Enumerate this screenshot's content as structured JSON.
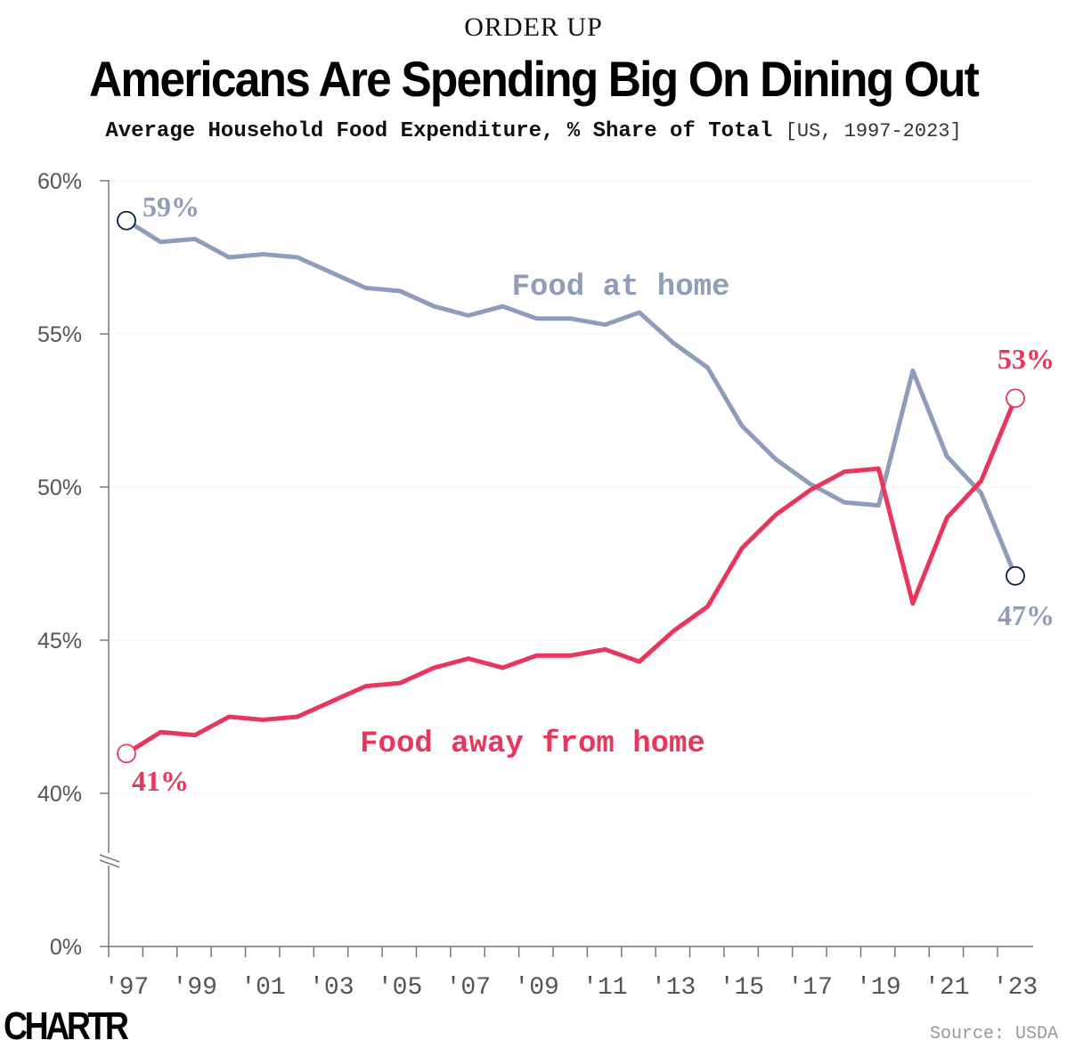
{
  "kicker": "ORDER UP",
  "title": "Americans Are Spending Big On Dining Out",
  "subtitle": "Average Household Food Expenditure, % Share of Total",
  "subtitle_range": "[US, 1997-2023]",
  "logo": "CHARTR",
  "source": "Source: USDA",
  "chart_data": {
    "type": "line",
    "title": "Americans Are Spending Big On Dining Out",
    "subtitle": "Average Household Food Expenditure, % Share of Total [US, 1997-2023]",
    "x": [
      1997,
      1998,
      1999,
      2000,
      2001,
      2002,
      2003,
      2004,
      2005,
      2006,
      2007,
      2008,
      2009,
      2010,
      2011,
      2012,
      2013,
      2014,
      2015,
      2016,
      2017,
      2018,
      2019,
      2020,
      2021,
      2022,
      2023
    ],
    "x_tick_labels": [
      "'97",
      "'99",
      "'01",
      "'03",
      "'05",
      "'07",
      "'09",
      "'11",
      "'13",
      "'15",
      "'17",
      "'19",
      "'21",
      "'23"
    ],
    "y_tick_labels": [
      "0%",
      "40%",
      "45%",
      "50%",
      "55%",
      "60%"
    ],
    "y_ticks": [
      0,
      40,
      45,
      50,
      55,
      60
    ],
    "ylim": [
      0,
      60
    ],
    "y_axis_break": [
      0,
      40
    ],
    "grid": true,
    "series": [
      {
        "name": "Food at home",
        "color": "#8e9dbb",
        "values": [
          58.7,
          58.0,
          58.1,
          57.5,
          57.6,
          57.5,
          57.0,
          56.5,
          56.4,
          55.9,
          55.6,
          55.9,
          55.5,
          55.5,
          55.3,
          55.7,
          54.7,
          53.9,
          52.0,
          50.9,
          50.1,
          49.5,
          49.4,
          53.8,
          51.0,
          49.8,
          47.1
        ],
        "start_label": "59%",
        "end_label": "47%"
      },
      {
        "name": "Food away from home",
        "color": "#e8365d",
        "values": [
          41.3,
          42.0,
          41.9,
          42.5,
          42.4,
          42.5,
          43.0,
          43.5,
          43.6,
          44.1,
          44.4,
          44.1,
          44.5,
          44.5,
          44.7,
          44.3,
          45.3,
          46.1,
          48.0,
          49.1,
          49.9,
          50.5,
          50.6,
          46.2,
          49.0,
          50.2,
          52.9
        ],
        "start_label": "41%",
        "end_label": "53%"
      }
    ]
  }
}
